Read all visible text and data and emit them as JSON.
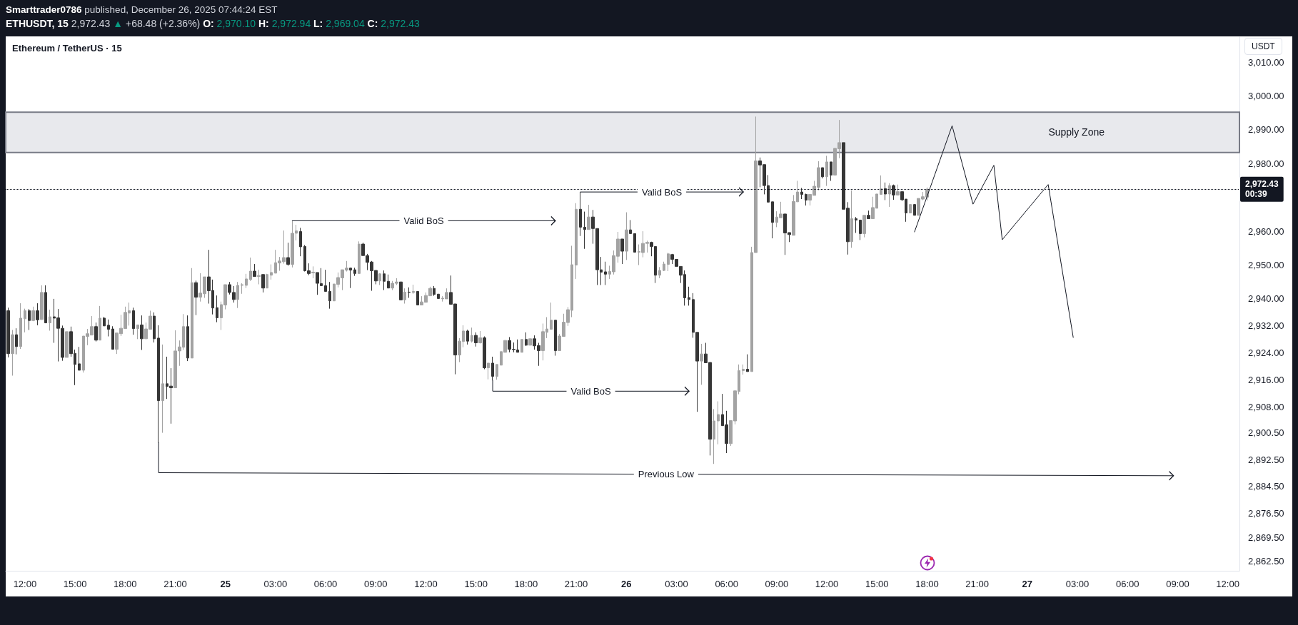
{
  "chart_data": {
    "type": "candlestick",
    "title": "Ethereum / TetherUS · 15",
    "ylabel": "USDT",
    "annotations": [
      "Smarttrader0786",
      "published, December 26, 2025 07:44:24 EST",
      "ETHUSDT, 15",
      "2,972.43 ▲ +68.48 (+2.36%)",
      "O: 2,970.10 H: 2,972.94 L: 2,969.04 C: 2,972.43"
    ],
    "xlim": [
      "2025-12-24T10:51",
      "2025-12-27T12:42"
    ],
    "xticks": [
      {
        "value": "2025-12-24T12:00",
        "label": "12:00"
      },
      {
        "value": "2025-12-24T15:00",
        "label": "15:00"
      },
      {
        "value": "2025-12-24T18:00",
        "label": "18:00"
      },
      {
        "value": "2025-12-24T21:00",
        "label": "21:00"
      },
      {
        "value": "2025-12-25T00:00",
        "label": "25"
      },
      {
        "value": "2025-12-25T03:00",
        "label": "03:00"
      },
      {
        "value": "2025-12-25T06:00",
        "label": "06:00"
      },
      {
        "value": "2025-12-25T09:00",
        "label": "09:00"
      },
      {
        "value": "2025-12-25T12:00",
        "label": "12:00"
      },
      {
        "value": "2025-12-25T15:00",
        "label": "15:00"
      },
      {
        "value": "2025-12-25T18:00",
        "label": "18:00"
      },
      {
        "value": "2025-12-25T21:00",
        "label": "21:00"
      },
      {
        "value": "2025-12-26T00:00",
        "label": "26"
      },
      {
        "value": "2025-12-26T03:00",
        "label": "03:00"
      },
      {
        "value": "2025-12-26T06:00",
        "label": "06:00"
      },
      {
        "value": "2025-12-26T09:00",
        "label": "09:00"
      },
      {
        "value": "2025-12-26T12:00",
        "label": "12:00"
      },
      {
        "value": "2025-12-26T15:00",
        "label": "15:00"
      },
      {
        "value": "2025-12-26T18:00",
        "label": "18:00"
      },
      {
        "value": "2025-12-26T21:00",
        "label": "21:00"
      },
      {
        "value": "2025-12-27T00:00",
        "label": "27"
      },
      {
        "value": "2025-12-27T03:00",
        "label": "03:00"
      },
      {
        "value": "2025-12-27T06:00",
        "label": "06:00"
      },
      {
        "value": "2025-12-27T09:00",
        "label": "09:00"
      },
      {
        "value": "2025-12-27T12:00",
        "label": "12:00"
      }
    ],
    "ylim": [
      2859.6,
      3017.4
    ],
    "yticks": [
      {
        "value": 3010,
        "label": "3,010.00"
      },
      {
        "value": 3000,
        "label": "3,000.00"
      },
      {
        "value": 2990,
        "label": "2,990.00"
      },
      {
        "value": 2980,
        "label": "2,980.00"
      },
      {
        "value": 2960,
        "label": "2,960.00"
      },
      {
        "value": 2950,
        "label": "2,950.00"
      },
      {
        "value": 2940,
        "label": "2,940.00"
      },
      {
        "value": 2932,
        "label": "2,932.00"
      },
      {
        "value": 2924,
        "label": "2,924.00"
      },
      {
        "value": 2916,
        "label": "2,916.00"
      },
      {
        "value": 2908,
        "label": "2,908.00"
      },
      {
        "value": 2900.5,
        "label": "2,900.50"
      },
      {
        "value": 2892.5,
        "label": "2,892.50"
      },
      {
        "value": 2884.5,
        "label": "2,884.50"
      },
      {
        "value": 2876.5,
        "label": "2,876.50"
      },
      {
        "value": 2869.5,
        "label": "2,869.50"
      },
      {
        "value": 2862.5,
        "label": "2,862.50"
      }
    ],
    "ref_lines": [
      {
        "axis": "y",
        "value": 2972.43,
        "label": "2,972.43\n00:39",
        "line_style": "dotted",
        "color": "#131722"
      }
    ],
    "bands": [
      {
        "axis": "y",
        "from": 2983.3,
        "to": 2995.2,
        "label": "Supply Zone",
        "color": "#e8e9ed"
      }
    ],
    "series": [
      {
        "type": "candlestick",
        "color": "#a3a3a3",
        "x": [
          "2025-12-24T11:15",
          "2025-12-24T11:45",
          "2025-12-24T12:00",
          "2025-12-24T12:30",
          "2025-12-24T13:00",
          "2025-12-24T13:30",
          "2025-12-24T14:30",
          "2025-12-24T15:30",
          "2025-12-24T15:45",
          "2025-12-24T16:00",
          "2025-12-24T16:30",
          "2025-12-24T17:30",
          "2025-12-24T17:45",
          "2025-12-24T18:00",
          "2025-12-24T18:15",
          "2025-12-24T18:45",
          "2025-12-24T19:15",
          "2025-12-24T19:30",
          "2025-12-24T20:15",
          "2025-12-24T21:00",
          "2025-12-24T21:15",
          "2025-12-24T21:30",
          "2025-12-24T22:00",
          "2025-12-24T22:30",
          "2025-12-24T22:45",
          "2025-12-24T23:45",
          "2025-12-25T00:00",
          "2025-12-25T00:45",
          "2025-12-25T01:00",
          "2025-12-25T01:15",
          "2025-12-25T01:30",
          "2025-12-25T02:00",
          "2025-12-25T02:30",
          "2025-12-25T02:45",
          "2025-12-25T03:00",
          "2025-12-25T03:15",
          "2025-12-25T03:30",
          "2025-12-25T04:00",
          "2025-12-25T04:15",
          "2025-12-25T05:15",
          "2025-12-25T06:30",
          "2025-12-25T06:45",
          "2025-12-25T07:00",
          "2025-12-25T07:15",
          "2025-12-25T08:00",
          "2025-12-25T09:15",
          "2025-12-25T10:00",
          "2025-12-25T10:15",
          "2025-12-25T10:45",
          "2025-12-25T11:15",
          "2025-12-25T11:45",
          "2025-12-25T12:00",
          "2025-12-25T12:15",
          "2025-12-25T13:00",
          "2025-12-25T13:15",
          "2025-12-25T14:00",
          "2025-12-25T14:15",
          "2025-12-25T14:45",
          "2025-12-25T15:15",
          "2025-12-25T15:45",
          "2025-12-25T16:15",
          "2025-12-25T16:30",
          "2025-12-25T16:45",
          "2025-12-25T17:45",
          "2025-12-25T18:15",
          "2025-12-25T19:00",
          "2025-12-25T19:15",
          "2025-12-25T19:30",
          "2025-12-25T20:00",
          "2025-12-25T20:15",
          "2025-12-25T20:30",
          "2025-12-25T20:45",
          "2025-12-25T21:00",
          "2025-12-25T21:45",
          "2025-12-25T23:00",
          "2025-12-25T23:15",
          "2025-12-25T23:30",
          "2025-12-26T00:00",
          "2025-12-26T00:45",
          "2025-12-26T01:00",
          "2025-12-26T01:15",
          "2025-12-26T02:00",
          "2025-12-26T02:15",
          "2025-12-26T02:30",
          "2025-12-26T04:30",
          "2025-12-26T05:15",
          "2025-12-26T05:30",
          "2025-12-26T06:15",
          "2025-12-26T06:30",
          "2025-12-26T06:45",
          "2025-12-26T07:00",
          "2025-12-26T07:30",
          "2025-12-26T07:45",
          "2025-12-26T09:00",
          "2025-12-26T09:15",
          "2025-12-26T10:00",
          "2025-12-26T10:15",
          "2025-12-26T11:00",
          "2025-12-26T11:15",
          "2025-12-26T11:30",
          "2025-12-26T12:00",
          "2025-12-26T12:30",
          "2025-12-26T12:45",
          "2025-12-26T13:30",
          "2025-12-26T14:15",
          "2025-12-26T14:45",
          "2025-12-26T15:00",
          "2025-12-26T15:15",
          "2025-12-26T15:45",
          "2025-12-26T16:15",
          "2025-12-26T17:00",
          "2025-12-26T17:30",
          "2025-12-26T17:45",
          "2025-12-26T18:00"
        ],
        "ohlc": [
          [
            2923.8,
            2930.8,
            2917.3,
            2929.4
          ],
          [
            2925.9,
            2938.7,
            2925.2,
            2934.3
          ],
          [
            2934.1,
            2937.1,
            2930.1,
            2936.5
          ],
          [
            2933.6,
            2937.7,
            2933.4,
            2936.5
          ],
          [
            2933.9,
            2944.0,
            2933.8,
            2941.9
          ],
          [
            2932.9,
            2936.8,
            2930.6,
            2934.7
          ],
          [
            2922.7,
            2930.3,
            2922.7,
            2930.3
          ],
          [
            2918.9,
            2929.0,
            2918.2,
            2929.0
          ],
          [
            2928.9,
            2931.1,
            2926.3,
            2929.7
          ],
          [
            2929.3,
            2934.9,
            2929.3,
            2931.8
          ],
          [
            2927.8,
            2937.9,
            2927.8,
            2934.3
          ],
          [
            2925.1,
            2929.9,
            2923.7,
            2929.9
          ],
          [
            2929.7,
            2935.3,
            2929.0,
            2931.3
          ],
          [
            2931.2,
            2937.7,
            2931.2,
            2936.0
          ],
          [
            2935.8,
            2938.9,
            2932.1,
            2936.5
          ],
          [
            2931.2,
            2932.3,
            2928.1,
            2932.3
          ],
          [
            2928.2,
            2933.0,
            2928.2,
            2931.1
          ],
          [
            2931.0,
            2936.5,
            2931.0,
            2934.9
          ],
          [
            2909.9,
            2926.5,
            2900.4,
            2914.9
          ],
          [
            2913.7,
            2930.7,
            2913.7,
            2924.6
          ],
          [
            2924.6,
            2927.7,
            2920.2,
            2925.8
          ],
          [
            2925.7,
            2935.5,
            2924.9,
            2931.8
          ],
          [
            2922.5,
            2949.1,
            2922.5,
            2944.8
          ],
          [
            2940.5,
            2947.6,
            2939.2,
            2941.7
          ],
          [
            2941.5,
            2946.5,
            2940.3,
            2946.5
          ],
          [
            2934.4,
            2939.2,
            2930.8,
            2938.3
          ],
          [
            2938.2,
            2944.2,
            2936.9,
            2944.2
          ],
          [
            2939.8,
            2945.0,
            2937.3,
            2944.0
          ],
          [
            2944.0,
            2944.6,
            2941.5,
            2944.2
          ],
          [
            2944.0,
            2947.4,
            2943.2,
            2945.9
          ],
          [
            2945.7,
            2952.2,
            2945.3,
            2948.2
          ],
          [
            2946.6,
            2948.6,
            2944.3,
            2946.9
          ],
          [
            2943.2,
            2947.4,
            2943.2,
            2947.2
          ],
          [
            2947.0,
            2950.2,
            2945.7,
            2947.8
          ],
          [
            2947.6,
            2954.5,
            2947.6,
            2950.7
          ],
          [
            2950.6,
            2952.4,
            2948.3,
            2951.2
          ],
          [
            2951.0,
            2960.2,
            2950.4,
            2952.2
          ],
          [
            2950.2,
            2963.1,
            2949.3,
            2959.4
          ],
          [
            2959.4,
            2961.9,
            2957.3,
            2960.1
          ],
          [
            2947.7,
            2949.6,
            2946.1,
            2947.9
          ],
          [
            2939.4,
            2944.4,
            2939.4,
            2944.4
          ],
          [
            2944.3,
            2947.8,
            2943.4,
            2946.3
          ],
          [
            2946.2,
            2948.6,
            2942.6,
            2948.6
          ],
          [
            2948.5,
            2951.2,
            2948.1,
            2949.1
          ],
          [
            2947.5,
            2957.0,
            2947.5,
            2956.2
          ],
          [
            2945.3,
            2947.6,
            2944.1,
            2947.4
          ],
          [
            2943.2,
            2945.3,
            2942.6,
            2944.6
          ],
          [
            2944.6,
            2946.1,
            2944.1,
            2945.0
          ],
          [
            2939.7,
            2943.1,
            2938.6,
            2942.0
          ],
          [
            2941.9,
            2944.2,
            2941.5,
            2942.2
          ],
          [
            2938.2,
            2940.8,
            2938.2,
            2939.1
          ],
          [
            2939.0,
            2941.9,
            2939.0,
            2941.0
          ],
          [
            2940.9,
            2943.6,
            2940.9,
            2943.1
          ],
          [
            2940.0,
            2940.8,
            2939.2,
            2940.2
          ],
          [
            2940.0,
            2943.1,
            2940.0,
            2941.9
          ],
          [
            2923.4,
            2928.4,
            2921.3,
            2927.5
          ],
          [
            2927.4,
            2932.2,
            2925.7,
            2930.5
          ],
          [
            2927.5,
            2931.5,
            2927.1,
            2929.2
          ],
          [
            2927.0,
            2930.5,
            2926.8,
            2928.5
          ],
          [
            2919.6,
            2921.0,
            2916.2,
            2921.0
          ],
          [
            2917.1,
            2920.6,
            2916.1,
            2920.6
          ],
          [
            2920.4,
            2924.4,
            2920.4,
            2924.4
          ],
          [
            2924.2,
            2927.7,
            2924.2,
            2927.7
          ],
          [
            2924.2,
            2928.0,
            2924.2,
            2928.0
          ],
          [
            2926.3,
            2928.2,
            2926.3,
            2928.2
          ],
          [
            2924.7,
            2932.7,
            2921.8,
            2930.3
          ],
          [
            2930.1,
            2934.6,
            2928.4,
            2931.1
          ],
          [
            2931.0,
            2938.9,
            2931.0,
            2933.7
          ],
          [
            2924.7,
            2929.6,
            2924.7,
            2929.0
          ],
          [
            2928.9,
            2935.6,
            2928.9,
            2933.1
          ],
          [
            2933.0,
            2937.6,
            2932.0,
            2936.8
          ],
          [
            2936.6,
            2955.7,
            2934.6,
            2950.1
          ],
          [
            2950.0,
            2968.3,
            2945.9,
            2966.5
          ],
          [
            2960.5,
            2967.8,
            2960.5,
            2964.2
          ],
          [
            2947.3,
            2949.8,
            2945.9,
            2948.1
          ],
          [
            2948.0,
            2954.3,
            2947.2,
            2952.8
          ],
          [
            2952.6,
            2959.8,
            2950.7,
            2957.7
          ],
          [
            2954.1,
            2965.6,
            2951.5,
            2960.4
          ],
          [
            2953.8,
            2956.1,
            2950.0,
            2954.0
          ],
          [
            2953.7,
            2960.0,
            2952.3,
            2956.4
          ],
          [
            2956.4,
            2957.2,
            2953.7,
            2956.7
          ],
          [
            2947.0,
            2949.4,
            2946.1,
            2948.4
          ],
          [
            2948.4,
            2951.0,
            2948.2,
            2950.3
          ],
          [
            2950.2,
            2953.6,
            2948.2,
            2953.3
          ],
          [
            2921.6,
            2926.7,
            2914.6,
            2923.7
          ],
          [
            2898.5,
            2907.4,
            2891.2,
            2903.9
          ],
          [
            2903.9,
            2909.7,
            2897.0,
            2905.8
          ],
          [
            2897.2,
            2904.0,
            2896.5,
            2904.0
          ],
          [
            2903.9,
            2912.8,
            2902.9,
            2912.8
          ],
          [
            2912.6,
            2920.6,
            2911.8,
            2918.8
          ],
          [
            2918.8,
            2920.6,
            2917.6,
            2919.2
          ],
          [
            2918.5,
            2955.4,
            2918.5,
            2953.7
          ],
          [
            2953.7,
            2993.9,
            2953.7,
            2980.8
          ],
          [
            2962.6,
            2965.9,
            2961.2,
            2964.2
          ],
          [
            2964.0,
            2968.7,
            2964.0,
            2965.1
          ],
          [
            2958.8,
            2970.7,
            2958.8,
            2968.8
          ],
          [
            2968.7,
            2974.9,
            2968.7,
            2971.6
          ],
          [
            2969.2,
            2970.9,
            2967.6,
            2970.9
          ],
          [
            2970.6,
            2974.9,
            2970.6,
            2973.3
          ],
          [
            2973.0,
            2980.7,
            2972.1,
            2978.8
          ],
          [
            2976.1,
            2982.3,
            2973.4,
            2980.5
          ],
          [
            2976.6,
            2984.5,
            2976.6,
            2984.5
          ],
          [
            2984.4,
            2992.9,
            2981.6,
            2986.2
          ],
          [
            2956.9,
            2972.1,
            2955.1,
            2963.7
          ],
          [
            2959.3,
            2964.7,
            2958.2,
            2964.7
          ],
          [
            2963.7,
            2970.2,
            2963.7,
            2967.0
          ],
          [
            2966.8,
            2971.0,
            2966.8,
            2971.0
          ],
          [
            2970.9,
            2976.5,
            2970.9,
            2972.6
          ],
          [
            2971.0,
            2974.2,
            2967.2,
            2973.5
          ],
          [
            2970.7,
            2973.8,
            2970.7,
            2971.7
          ],
          [
            2965.4,
            2967.9,
            2965.4,
            2967.9
          ],
          [
            2964.7,
            2969.7,
            2964.7,
            2969.7
          ],
          [
            2969.5,
            2971.6,
            2969.2,
            2970.2
          ],
          [
            2970.1,
            2972.94,
            2969.04,
            2972.43
          ]
        ]
      },
      {
        "type": "candlestick",
        "color": "#363636",
        "x": [
          "2025-12-24T11:00",
          "2025-12-24T11:30",
          "2025-12-24T12:15",
          "2025-12-24T12:45",
          "2025-12-24T13:15",
          "2025-12-24T13:45",
          "2025-12-24T14:00",
          "2025-12-24T14:15",
          "2025-12-24T14:45",
          "2025-12-24T15:00",
          "2025-12-24T15:15",
          "2025-12-24T16:15",
          "2025-12-24T16:45",
          "2025-12-24T17:00",
          "2025-12-24T17:15",
          "2025-12-24T18:30",
          "2025-12-24T19:00",
          "2025-12-24T19:45",
          "2025-12-24T20:00",
          "2025-12-24T20:30",
          "2025-12-24T20:45",
          "2025-12-24T21:45",
          "2025-12-24T22:15",
          "2025-12-24T23:00",
          "2025-12-24T23:15",
          "2025-12-24T23:30",
          "2025-12-25T00:15",
          "2025-12-25T00:30",
          "2025-12-25T01:45",
          "2025-12-25T02:15",
          "2025-12-25T03:45",
          "2025-12-25T04:30",
          "2025-12-25T04:45",
          "2025-12-25T05:00",
          "2025-12-25T05:30",
          "2025-12-25T05:45",
          "2025-12-25T06:00",
          "2025-12-25T06:15",
          "2025-12-25T07:30",
          "2025-12-25T07:45",
          "2025-12-25T08:15",
          "2025-12-25T08:30",
          "2025-12-25T08:45",
          "2025-12-25T09:00",
          "2025-12-25T09:30",
          "2025-12-25T09:45",
          "2025-12-25T10:30",
          "2025-12-25T11:00",
          "2025-12-25T11:30",
          "2025-12-25T12:30",
          "2025-12-25T12:45",
          "2025-12-25T13:30",
          "2025-12-25T13:45",
          "2025-12-25T14:30",
          "2025-12-25T15:00",
          "2025-12-25T15:30",
          "2025-12-25T16:00",
          "2025-12-25T17:00",
          "2025-12-25T17:15",
          "2025-12-25T17:30",
          "2025-12-25T18:00",
          "2025-12-25T18:30",
          "2025-12-25T18:45",
          "2025-12-25T19:45",
          "2025-12-25T21:15",
          "2025-12-25T21:30",
          "2025-12-25T22:00",
          "2025-12-25T22:15",
          "2025-12-25T22:30",
          "2025-12-25T22:45",
          "2025-12-25T23:45",
          "2025-12-26T00:15",
          "2025-12-26T00:30",
          "2025-12-26T01:30",
          "2025-12-26T01:45",
          "2025-12-26T02:45",
          "2025-12-26T03:00",
          "2025-12-26T03:15",
          "2025-12-26T03:30",
          "2025-12-26T03:45",
          "2025-12-26T04:00",
          "2025-12-26T04:15",
          "2025-12-26T04:45",
          "2025-12-26T05:00",
          "2025-12-26T05:45",
          "2025-12-26T06:00",
          "2025-12-26T07:15",
          "2025-12-26T08:00",
          "2025-12-26T08:15",
          "2025-12-26T08:30",
          "2025-12-26T08:45",
          "2025-12-26T09:30",
          "2025-12-26T09:45",
          "2025-12-26T10:30",
          "2025-12-26T10:45",
          "2025-12-26T11:45",
          "2025-12-26T12:15",
          "2025-12-26T13:00",
          "2025-12-26T13:15",
          "2025-12-26T13:45",
          "2025-12-26T14:00",
          "2025-12-26T14:30",
          "2025-12-26T15:30",
          "2025-12-26T16:00",
          "2025-12-26T16:30",
          "2025-12-26T16:45",
          "2025-12-26T17:15"
        ],
        "ohlc": [
          [
            2936.5,
            2937.4,
            2922.7,
            2923.8
          ],
          [
            2929.4,
            2931.3,
            2923.6,
            2925.9
          ],
          [
            2936.5,
            2937.0,
            2930.8,
            2933.6
          ],
          [
            2936.5,
            2938.7,
            2932.2,
            2933.8
          ],
          [
            2941.9,
            2944.0,
            2932.9,
            2932.9
          ],
          [
            2934.7,
            2940.0,
            2927.0,
            2934.3
          ],
          [
            2934.4,
            2937.0,
            2921.5,
            2931.3
          ],
          [
            2931.3,
            2932.1,
            2921.7,
            2922.7
          ],
          [
            2930.3,
            2931.8,
            2922.9,
            2923.8
          ],
          [
            2923.9,
            2925.0,
            2914.5,
            2920.6
          ],
          [
            2920.8,
            2925.8,
            2918.9,
            2918.9
          ],
          [
            2931.8,
            2933.0,
            2927.4,
            2927.8
          ],
          [
            2934.3,
            2934.7,
            2932.0,
            2932.0
          ],
          [
            2932.2,
            2933.9,
            2928.9,
            2931.0
          ],
          [
            2931.1,
            2931.9,
            2925.1,
            2925.1
          ],
          [
            2936.5,
            2937.4,
            2929.4,
            2931.2
          ],
          [
            2932.3,
            2935.1,
            2924.9,
            2928.2
          ],
          [
            2934.9,
            2936.0,
            2927.1,
            2928.2
          ],
          [
            2928.4,
            2932.2,
            2897.5,
            2909.9
          ],
          [
            2914.9,
            2922.9,
            2910.4,
            2914.1
          ],
          [
            2914.2,
            2919.5,
            2903.1,
            2913.7
          ],
          [
            2931.8,
            2935.1,
            2921.6,
            2922.5
          ],
          [
            2944.8,
            2945.4,
            2935.2,
            2940.5
          ],
          [
            2946.5,
            2954.5,
            2938.6,
            2942.4
          ],
          [
            2942.5,
            2945.7,
            2935.4,
            2937.3
          ],
          [
            2937.4,
            2941.0,
            2933.1,
            2934.4
          ],
          [
            2944.2,
            2945.0,
            2941.3,
            2941.9
          ],
          [
            2941.9,
            2943.8,
            2938.9,
            2939.8
          ],
          [
            2948.2,
            2950.3,
            2946.6,
            2946.6
          ],
          [
            2947.2,
            2947.2,
            2941.9,
            2943.2
          ],
          [
            2952.2,
            2956.6,
            2949.8,
            2950.2
          ],
          [
            2959.9,
            2961.0,
            2952.6,
            2955.4
          ],
          [
            2955.5,
            2955.9,
            2948.1,
            2948.3
          ],
          [
            2948.3,
            2950.5,
            2947.0,
            2947.5
          ],
          [
            2947.8,
            2947.8,
            2941.2,
            2944.6
          ],
          [
            2944.5,
            2949.1,
            2943.9,
            2943.9
          ],
          [
            2943.9,
            2948.6,
            2942.2,
            2942.2
          ],
          [
            2942.2,
            2945.0,
            2937.1,
            2939.4
          ],
          [
            2949.1,
            2949.2,
            2943.2,
            2948.5
          ],
          [
            2948.6,
            2949.2,
            2946.8,
            2947.5
          ],
          [
            2956.2,
            2956.6,
            2952.8,
            2952.8
          ],
          [
            2952.8,
            2953.3,
            2948.5,
            2950.8
          ],
          [
            2950.9,
            2951.2,
            2942.4,
            2948.3
          ],
          [
            2948.4,
            2948.4,
            2944.3,
            2945.3
          ],
          [
            2947.4,
            2948.4,
            2942.6,
            2945.2
          ],
          [
            2945.2,
            2947.2,
            2943.2,
            2943.2
          ],
          [
            2945.0,
            2945.0,
            2939.7,
            2939.7
          ],
          [
            2942.0,
            2943.4,
            2940.3,
            2941.9
          ],
          [
            2942.2,
            2942.2,
            2938.2,
            2938.2
          ],
          [
            2943.1,
            2943.8,
            2940.9,
            2941.3
          ],
          [
            2941.4,
            2941.4,
            2940.1,
            2940.1
          ],
          [
            2941.9,
            2946.9,
            2938.4,
            2938.4
          ],
          [
            2938.5,
            2938.5,
            2917.7,
            2923.4
          ],
          [
            2930.5,
            2930.9,
            2926.5,
            2927.5
          ],
          [
            2929.2,
            2930.1,
            2925.9,
            2927.0
          ],
          [
            2928.5,
            2928.9,
            2919.2,
            2919.6
          ],
          [
            2921.0,
            2922.9,
            2915.9,
            2917.1
          ],
          [
            2927.7,
            2928.7,
            2924.2,
            2925.1
          ],
          [
            2925.1,
            2927.1,
            2924.2,
            2925.0
          ],
          [
            2924.9,
            2928.0,
            2924.2,
            2924.2
          ],
          [
            2928.0,
            2930.1,
            2926.1,
            2926.3
          ],
          [
            2928.2,
            2929.2,
            2925.0,
            2926.1
          ],
          [
            2926.2,
            2927.0,
            2920.2,
            2924.7
          ],
          [
            2933.7,
            2933.7,
            2923.2,
            2924.7
          ],
          [
            2966.5,
            2971.6,
            2958.6,
            2961.2
          ],
          [
            2961.2,
            2965.8,
            2954.8,
            2960.5
          ],
          [
            2964.2,
            2966.3,
            2956.3,
            2960.8
          ],
          [
            2960.8,
            2960.8,
            2944.1,
            2948.6
          ],
          [
            2948.6,
            2952.4,
            2944.1,
            2947.9
          ],
          [
            2948.0,
            2951.0,
            2944.1,
            2947.3
          ],
          [
            2957.7,
            2957.7,
            2950.3,
            2954.1
          ],
          [
            2960.4,
            2963.3,
            2959.3,
            2959.3
          ],
          [
            2959.3,
            2959.3,
            2953.8,
            2953.8
          ],
          [
            2956.7,
            2956.9,
            2952.6,
            2955.5
          ],
          [
            2955.5,
            2955.5,
            2944.7,
            2947.0
          ],
          [
            2953.1,
            2953.3,
            2950.3,
            2951.7
          ],
          [
            2951.7,
            2951.7,
            2949.6,
            2949.6
          ],
          [
            2949.6,
            2949.6,
            2944.7,
            2947.0
          ],
          [
            2947.2,
            2948.4,
            2938.0,
            2940.3
          ],
          [
            2940.4,
            2943.6,
            2938.0,
            2939.8
          ],
          [
            2939.8,
            2941.7,
            2928.5,
            2930.1
          ],
          [
            2930.1,
            2930.1,
            2906.6,
            2921.6
          ],
          [
            2923.7,
            2927.0,
            2921.1,
            2921.1
          ],
          [
            2921.2,
            2921.2,
            2893.7,
            2898.5
          ],
          [
            2905.8,
            2911.9,
            2902.5,
            2902.5
          ],
          [
            2902.8,
            2906.9,
            2894.4,
            2897.2
          ],
          [
            2919.2,
            2923.6,
            2918.5,
            2918.5
          ],
          [
            2980.8,
            2981.8,
            2973.0,
            2979.6
          ],
          [
            2979.7,
            2979.7,
            2970.9,
            2973.5
          ],
          [
            2973.5,
            2976.6,
            2968.6,
            2968.6
          ],
          [
            2968.7,
            2968.7,
            2957.9,
            2962.6
          ],
          [
            2965.1,
            2965.1,
            2953.0,
            2959.5
          ],
          [
            2959.6,
            2959.6,
            2956.8,
            2959.0
          ],
          [
            2971.6,
            2972.8,
            2969.5,
            2970.9
          ],
          [
            2970.9,
            2971.1,
            2967.6,
            2969.2
          ],
          [
            2978.8,
            2978.8,
            2975.6,
            2976.1
          ],
          [
            2980.5,
            2980.5,
            2974.9,
            2976.6
          ],
          [
            2986.2,
            2986.2,
            2966.5,
            2966.5
          ],
          [
            2966.8,
            2968.6,
            2953.1,
            2956.9
          ],
          [
            2963.7,
            2964.2,
            2959.5,
            2963.3
          ],
          [
            2963.3,
            2963.3,
            2957.4,
            2959.3
          ],
          [
            2964.7,
            2966.1,
            2963.7,
            2963.7
          ],
          [
            2972.6,
            2974.4,
            2969.2,
            2971.0
          ],
          [
            2973.5,
            2973.8,
            2969.3,
            2970.7
          ],
          [
            2971.7,
            2971.7,
            2969.0,
            2969.3
          ],
          [
            2969.5,
            2969.5,
            2962.8,
            2965.4
          ],
          [
            2967.9,
            2968.0,
            2964.7,
            2964.7
          ]
        ]
      },
      {
        "type": "line",
        "name": "Valid BoS",
        "color": "#131722",
        "x": [
          "2025-12-25T04:00",
          "2025-12-25T19:45"
        ],
        "values": [
          2963.1,
          2963.1
        ]
      },
      {
        "type": "line",
        "name": "Valid BoS",
        "color": "#131722",
        "x": [
          "2025-12-25T21:15",
          "2025-12-26T07:00"
        ],
        "values": [
          2971.6,
          2971.6
        ]
      },
      {
        "type": "line",
        "name": "Valid BoS",
        "color": "#131722",
        "x": [
          "2025-12-25T16:00",
          "2025-12-25T16:00",
          "2025-12-26T03:45"
        ],
        "values": [
          2915.9,
          2912.7,
          2912.7
        ]
      },
      {
        "type": "line",
        "name": "Previous Low",
        "color": "#131722",
        "x": [
          "2025-12-24T20:00",
          "2025-12-24T20:00",
          "2025-12-27T08:45"
        ],
        "values": [
          2897.5,
          2888.6,
          2887.7
        ]
      },
      {
        "type": "line",
        "color": "#131722",
        "x": [
          "2025-12-26T17:15",
          "2025-12-26T19:30",
          "2025-12-26T20:45",
          "2025-12-26T22:00",
          "2025-12-26T22:30",
          "2025-12-27T01:15",
          "2025-12-27T02:45"
        ],
        "values": [
          2959.8,
          2991.2,
          2968.0,
          2979.5,
          2957.5,
          2973.8,
          2928.6
        ]
      }
    ]
  }
}
